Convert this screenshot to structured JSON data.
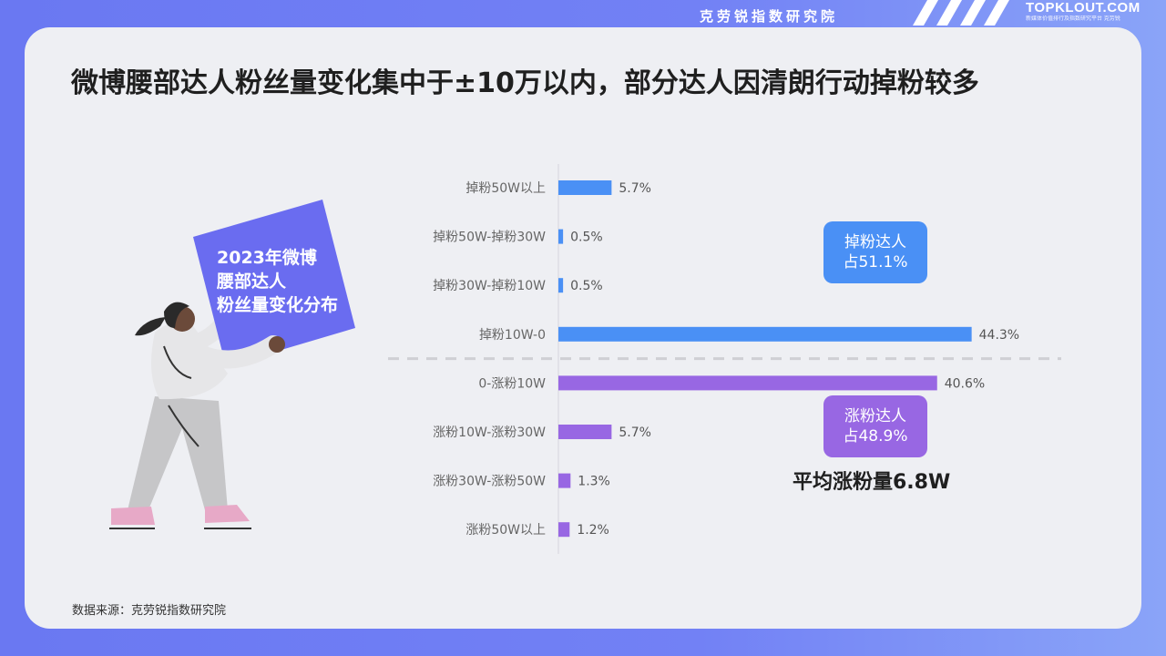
{
  "header": {
    "institute": "克劳锐指数研究院",
    "logo_text": "TOPKLOUT.COM",
    "logo_sub": "新媒体价值排行及指数研究平台",
    "logo_cn": "克劳锐"
  },
  "title": "微博腰部达人粉丝量变化集中于±10万以内，部分达人因清朗行动掉粉较多",
  "poster": {
    "line1": "2023年微博",
    "line2": "腰部达人",
    "line3": "粉丝量变化分布"
  },
  "callouts": {
    "loss_label": "掉粉达人",
    "loss_value": "占51.1%",
    "gain_label": "涨粉达人",
    "gain_value": "占48.9%",
    "average": "平均涨粉量6.8W"
  },
  "source": "数据来源：克劳锐指数研究院",
  "colors": {
    "loss": "#4a90f5",
    "gain": "#9867e3",
    "poster": "#6a6cf0",
    "background": "#eeeff3"
  },
  "chart_data": {
    "type": "bar",
    "orientation": "horizontal",
    "categories": [
      "掉粉50W以上",
      "掉粉50W-掉粉30W",
      "掉粉30W-掉粉10W",
      "掉粉10W-0",
      "0-涨粉10W",
      "涨粉10W-涨粉30W",
      "涨粉30W-涨粉50W",
      "涨粉50W以上"
    ],
    "values": [
      5.7,
      0.5,
      0.5,
      44.3,
      40.6,
      5.7,
      1.3,
      1.2
    ],
    "value_labels": [
      "5.7%",
      "0.5%",
      "0.5%",
      "44.3%",
      "40.6%",
      "5.7%",
      "1.3%",
      "1.2%"
    ],
    "groups": [
      "loss",
      "loss",
      "loss",
      "loss",
      "gain",
      "gain",
      "gain",
      "gain"
    ],
    "xlim": [
      0,
      50
    ],
    "unit": "%",
    "grid": false,
    "legend": "none"
  }
}
